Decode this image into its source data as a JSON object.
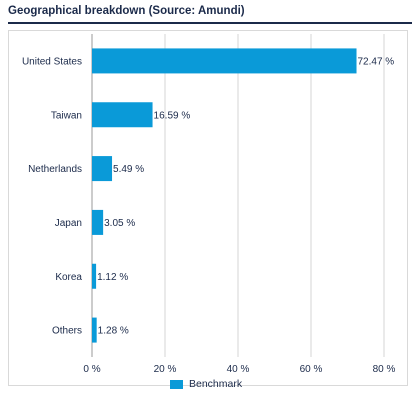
{
  "chart_data": {
    "type": "bar",
    "orientation": "horizontal",
    "title": "Geographical breakdown (Source: Amundi)",
    "categories": [
      "United States",
      "Taiwan",
      "Netherlands",
      "Japan",
      "Korea",
      "Others"
    ],
    "series": [
      {
        "name": "Benchmark",
        "values": [
          72.47,
          16.59,
          5.49,
          3.05,
          1.12,
          1.28
        ]
      }
    ],
    "data_labels": [
      "72.47 %",
      "16.59 %",
      "5.49 %",
      "3.05 %",
      "1.12 %",
      "1.28 %"
    ],
    "x_ticks": [
      0,
      20,
      40,
      60,
      80
    ],
    "x_tick_labels": [
      "0 %",
      "20 %",
      "40 %",
      "60 %",
      "80 %"
    ],
    "xlim": [
      0,
      80
    ],
    "grid": true,
    "legend_position": "bottom",
    "bar_color": "#0a9ad8",
    "grid_color": "#d6d6d6"
  }
}
